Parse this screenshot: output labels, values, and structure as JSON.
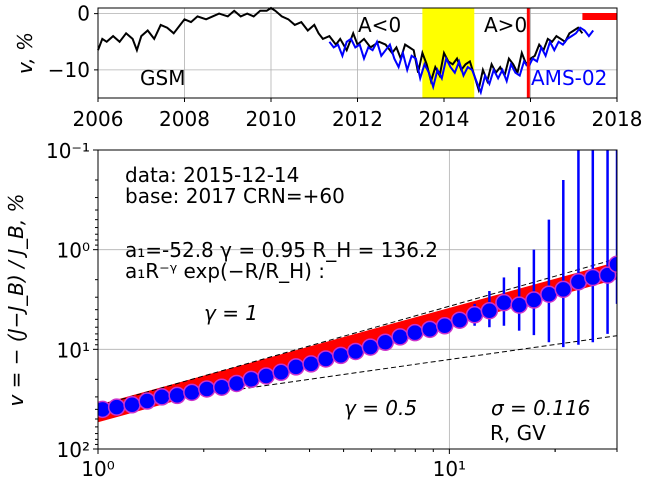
{
  "chart_data": [
    {
      "type": "line",
      "ylabel": "v, %",
      "xlim": [
        2006,
        2018
      ],
      "ylim": [
        -15,
        1
      ],
      "grid": true,
      "x_ticks": [
        "2006",
        "2008",
        "2010",
        "2012",
        "2014",
        "2016",
        "2018"
      ],
      "y_ticks": [
        "0",
        "−10"
      ],
      "annotations": {
        "gsm": "GSM",
        "ams": "AMS-02",
        "aneg": "A<0",
        "apos": "A>0"
      },
      "shaded_span": {
        "x": [
          2013.5,
          2014.7
        ],
        "color": "#ffff00"
      },
      "vline": {
        "x": 2015.95,
        "color": "#ff0000"
      },
      "marker_bar": {
        "x": [
          2017.2,
          2018.0
        ],
        "y": -0.5,
        "color": "#ff0000"
      },
      "series": [
        {
          "color": "#000000",
          "x": [
            2006.0,
            2006.1,
            2006.2,
            2006.35,
            2006.5,
            2006.65,
            2006.8,
            2006.9,
            2007.0,
            2007.15,
            2007.3,
            2007.45,
            2007.6,
            2007.75,
            2007.9,
            2008.0,
            2008.15,
            2008.3,
            2008.5,
            2008.65,
            2008.8,
            2009.0,
            2009.15,
            2009.3,
            2009.45,
            2009.6,
            2009.75,
            2009.9,
            2010.0,
            2010.1,
            2010.25,
            2010.4,
            2010.55,
            2010.7,
            2010.85,
            2011.0,
            2011.1,
            2011.2,
            2011.35,
            2011.5,
            2011.6,
            2011.75,
            2011.9,
            2012.0,
            2012.15,
            2012.3,
            2012.4,
            2012.5,
            2012.65,
            2012.8,
            2012.9,
            2013.0,
            2013.1,
            2013.2,
            2013.3,
            2013.4,
            2013.5,
            2013.6,
            2013.7,
            2013.8,
            2013.9,
            2014.0,
            2014.1,
            2014.2,
            2014.3,
            2014.4,
            2014.5,
            2014.6,
            2014.7,
            2014.8,
            2014.9,
            2015.0,
            2015.1,
            2015.2,
            2015.3,
            2015.4,
            2015.5,
            2015.6,
            2015.7,
            2015.8,
            2015.9,
            2016.0,
            2016.1,
            2016.2,
            2016.3,
            2016.4,
            2016.5,
            2016.6,
            2016.7,
            2016.8,
            2016.9,
            2017.0,
            2017.1,
            2017.2
          ],
          "y": [
            -6.5,
            -4.5,
            -5,
            -4,
            -5,
            -3.5,
            -4.5,
            -6.5,
            -4,
            -3,
            -4.5,
            -2,
            -2.5,
            -3.5,
            -2,
            -1,
            -1.5,
            -0.5,
            -1,
            -0.5,
            0,
            -0.5,
            0.5,
            -0.5,
            0,
            -0.5,
            0.5,
            0.5,
            1,
            0.5,
            -0.5,
            -1,
            -2,
            -1.5,
            -3,
            -2,
            -3.5,
            -4.5,
            -4,
            -5.5,
            -4.5,
            -6.5,
            -3.5,
            -5.5,
            -4.5,
            -6,
            -5.5,
            -5,
            -5.5,
            -7,
            -6,
            -8,
            -5.5,
            -6,
            -6.5,
            -10.5,
            -7,
            -9,
            -12,
            -9.5,
            -11,
            -7,
            -8.5,
            -9,
            -8,
            -10,
            -9,
            -8.5,
            -11,
            -13.5,
            -10,
            -12,
            -9,
            -10.5,
            -9.5,
            -11,
            -8,
            -9,
            -10.5,
            -7,
            -9,
            -8,
            -7.5,
            -5.5,
            -6.5,
            -4.5,
            -5,
            -4,
            -4.5,
            -5,
            -3.5,
            -3,
            -2.5,
            -3.5
          ]
        },
        {
          "color": "#0000ff",
          "x": [
            2011.35,
            2011.45,
            2011.55,
            2011.65,
            2011.75,
            2011.85,
            2011.95,
            2012.05,
            2012.15,
            2012.25,
            2012.35,
            2012.45,
            2012.55,
            2012.65,
            2012.75,
            2012.85,
            2012.95,
            2013.05,
            2013.15,
            2013.25,
            2013.35,
            2013.45,
            2013.55,
            2013.65,
            2013.75,
            2013.85,
            2013.95,
            2014.05,
            2014.15,
            2014.25,
            2014.35,
            2014.45,
            2014.55,
            2014.65,
            2014.75,
            2014.85,
            2014.95,
            2015.05,
            2015.15,
            2015.25,
            2015.35,
            2015.45,
            2015.55,
            2015.65,
            2015.75,
            2015.85,
            2015.95,
            2016.05,
            2016.15,
            2016.25,
            2016.35,
            2016.45,
            2016.55,
            2016.65,
            2016.75,
            2016.85,
            2016.95,
            2017.05,
            2017.15,
            2017.25,
            2017.35,
            2017.45
          ],
          "y": [
            -5,
            -6,
            -5.5,
            -7.5,
            -5,
            -4.5,
            -6,
            -5.5,
            -8,
            -6,
            -6.5,
            -5,
            -7.5,
            -6.5,
            -5.5,
            -8,
            -9.5,
            -7,
            -10,
            -7.5,
            -8,
            -11.5,
            -9,
            -10.5,
            -13,
            -10,
            -11.5,
            -8,
            -9.5,
            -10.5,
            -8.5,
            -11,
            -9.5,
            -10,
            -12,
            -14,
            -11,
            -12.5,
            -10,
            -11.5,
            -10,
            -12,
            -9,
            -10.5,
            -11,
            -8.5,
            -9.5,
            -8,
            -8.5,
            -6,
            -7.5,
            -5,
            -6.5,
            -5,
            -5.5,
            -4.5,
            -4,
            -3.5,
            -2.5,
            -3,
            -4,
            -3
          ]
        }
      ]
    },
    {
      "type": "scatter",
      "xlabel": "R, GV",
      "ylabel": "v = − (J−J_B) / J_B, %",
      "xscale": "log",
      "yscale": "log",
      "y_inverted": true,
      "xlim": [
        1,
        30
      ],
      "ylim": [
        0.1,
        100
      ],
      "grid": true,
      "x_ticks": [
        "10⁰",
        "10¹"
      ],
      "y_ticks": [
        "10⁻¹",
        "10⁰",
        "10¹",
        "10²"
      ],
      "annotations": {
        "data_line": "data: 2015-12-14",
        "base_line": "base: 2017   CRN=+60",
        "fit_params": "a₁=-52.8  γ = 0.95  R_H = 136.2",
        "fit_formula": "a₁R⁻ᵞ exp(−R/R_H) :",
        "gamma1": "γ = 1",
        "gamma05": "γ = 0.5",
        "sigma": "σ = 0.116"
      },
      "points_color": "#0000ff",
      "points_edge_color": "#cc33cc",
      "errorbar_color": "#0000ff",
      "fit_band_color": "#ff0000",
      "reference_lines": [
        {
          "label": "γ = 1",
          "slope_gamma": 1,
          "points": [
            [
              1.0,
              37
            ],
            [
              30,
              1.23
            ]
          ]
        },
        {
          "label": "γ = 0.5",
          "slope_gamma": 0.5,
          "points": [
            [
              1.0,
              40
            ],
            [
              30,
              7.3
            ]
          ]
        }
      ],
      "points": [
        {
          "x": 1.03,
          "y": 40,
          "err_lo": 40,
          "err_hi": 40
        },
        {
          "x": 1.13,
          "y": 38,
          "err_lo": 38,
          "err_hi": 38
        },
        {
          "x": 1.25,
          "y": 36,
          "err_lo": 36,
          "err_hi": 36
        },
        {
          "x": 1.38,
          "y": 33,
          "err_lo": 33,
          "err_hi": 33
        },
        {
          "x": 1.52,
          "y": 30,
          "err_lo": 30,
          "err_hi": 30
        },
        {
          "x": 1.68,
          "y": 29,
          "err_lo": 29,
          "err_hi": 29
        },
        {
          "x": 1.85,
          "y": 27,
          "err_lo": 27,
          "err_hi": 27
        },
        {
          "x": 2.04,
          "y": 25,
          "err_lo": 25,
          "err_hi": 25
        },
        {
          "x": 2.25,
          "y": 24,
          "err_lo": 24,
          "err_hi": 24
        },
        {
          "x": 2.48,
          "y": 22,
          "err_lo": 22,
          "err_hi": 22
        },
        {
          "x": 2.73,
          "y": 20,
          "err_lo": 20,
          "err_hi": 20
        },
        {
          "x": 3.01,
          "y": 18.5,
          "err_lo": 18.5,
          "err_hi": 18.5
        },
        {
          "x": 3.32,
          "y": 17,
          "err_lo": 17,
          "err_hi": 17
        },
        {
          "x": 3.66,
          "y": 15,
          "err_lo": 15,
          "err_hi": 15
        },
        {
          "x": 4.04,
          "y": 14,
          "err_lo": 14,
          "err_hi": 14
        },
        {
          "x": 4.45,
          "y": 12.5,
          "err_lo": 12.5,
          "err_hi": 12.5
        },
        {
          "x": 4.91,
          "y": 11.5,
          "err_lo": 11.5,
          "err_hi": 11.5
        },
        {
          "x": 5.41,
          "y": 10.5,
          "err_lo": 10.5,
          "err_hi": 10.5
        },
        {
          "x": 5.96,
          "y": 9.5,
          "err_lo": 9.5,
          "err_hi": 9.5
        },
        {
          "x": 6.57,
          "y": 8.5,
          "err_lo": 8.5,
          "err_hi": 8.5
        },
        {
          "x": 7.24,
          "y": 7.5,
          "err_lo": 7.9,
          "err_hi": 7.1
        },
        {
          "x": 7.98,
          "y": 6.8,
          "err_lo": 7.3,
          "err_hi": 6.3
        },
        {
          "x": 8.8,
          "y": 6.3,
          "err_lo": 6.9,
          "err_hi": 5.7
        },
        {
          "x": 9.7,
          "y": 5.8,
          "err_lo": 6.6,
          "err_hi": 5.0
        },
        {
          "x": 10.7,
          "y": 5.1,
          "err_lo": 6.2,
          "err_hi": 4.2
        },
        {
          "x": 11.8,
          "y": 4.5,
          "err_lo": 5.8,
          "err_hi": 3.5
        },
        {
          "x": 13.0,
          "y": 4.1,
          "err_lo": 6.0,
          "err_hi": 2.6
        },
        {
          "x": 14.3,
          "y": 3.4,
          "err_lo": 5.8,
          "err_hi": 1.9
        },
        {
          "x": 15.8,
          "y": 3.6,
          "err_lo": 6.5,
          "err_hi": 1.5
        },
        {
          "x": 17.4,
          "y": 3.2,
          "err_lo": 7.2,
          "err_hi": 1.0
        },
        {
          "x": 19.2,
          "y": 2.8,
          "err_lo": 8.5,
          "err_hi": 0.5
        },
        {
          "x": 21.1,
          "y": 2.5,
          "err_lo": 9.5,
          "err_hi": 0.2
        },
        {
          "x": 23.3,
          "y": 2.1,
          "err_lo": 9.0,
          "err_hi": 0.1
        },
        {
          "x": 25.6,
          "y": 1.9,
          "err_lo": 8.5,
          "err_hi": 0.1
        },
        {
          "x": 28.2,
          "y": 1.8,
          "err_lo": 7.0,
          "err_hi": 0.1
        },
        {
          "x": 30.0,
          "y": 1.4,
          "err_lo": 3.5,
          "err_hi": 0.1
        }
      ],
      "fit_band": {
        "width_data": 0.2,
        "points": [
          [
            1.0,
            45
          ],
          [
            30,
            1.65
          ]
        ]
      }
    }
  ]
}
